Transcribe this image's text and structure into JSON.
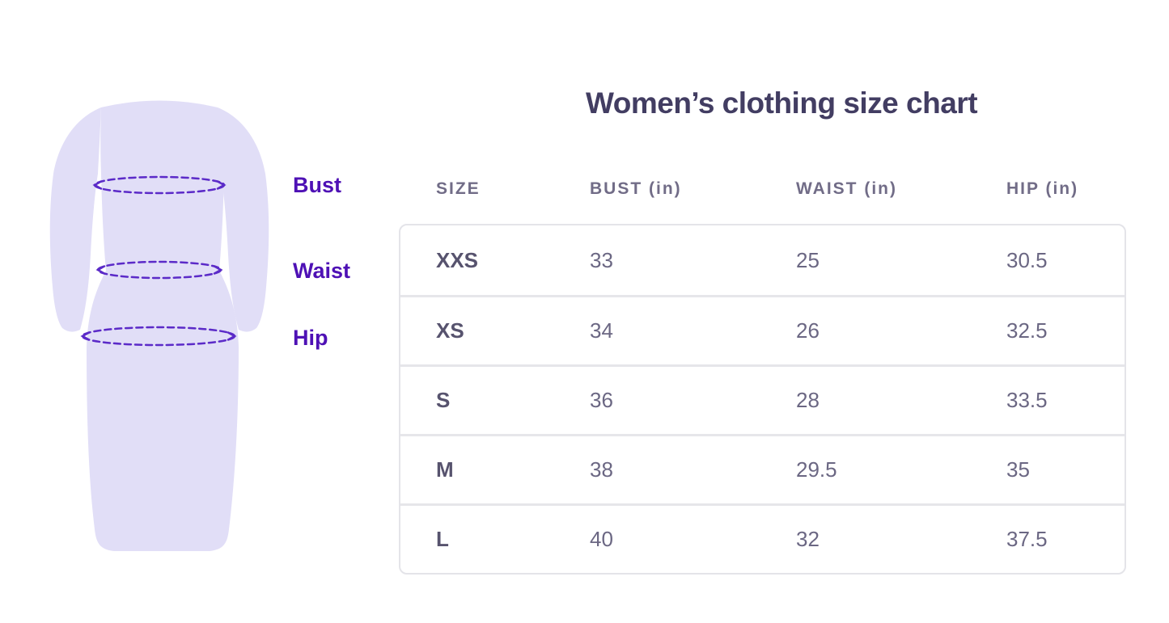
{
  "title": "Women’s clothing size chart",
  "figure": {
    "illustration": "dress-silhouette-with-measurement-lines",
    "measurement_labels": [
      "Bust",
      "Waist",
      "Hip"
    ]
  },
  "table": {
    "headers": [
      "SIZE",
      "BUST (in)",
      "WAIST (in)",
      "HIP (in)"
    ],
    "rows": [
      [
        "XXS",
        "33",
        "25",
        "30.5"
      ],
      [
        "XS",
        "34",
        "26",
        "32.5"
      ],
      [
        "S",
        "36",
        "28",
        "33.5"
      ],
      [
        "M",
        "38",
        "29.5",
        "35"
      ],
      [
        "L",
        "40",
        "32",
        "37.5"
      ]
    ]
  },
  "colors": {
    "title_text": "#423d62",
    "header_text": "#716c87",
    "size_text": "#57536e",
    "value_text": "#6b6783",
    "label_purple": "#4e11b5",
    "measure_line": "#5b2ac8",
    "dress_fill": "#e1def7",
    "table_border": "#e4e4e9",
    "row_separator": "#e6e6ea",
    "background": "#ffffff"
  },
  "chart_data": {
    "type": "table",
    "title": "Women’s clothing size chart",
    "columns": [
      "SIZE",
      "BUST (in)",
      "WAIST (in)",
      "HIP (in)"
    ],
    "units": "inches",
    "rows": [
      {
        "size": "XXS",
        "bust": 33,
        "waist": 25,
        "hip": 30.5
      },
      {
        "size": "XS",
        "bust": 34,
        "waist": 26,
        "hip": 32.5
      },
      {
        "size": "S",
        "bust": 36,
        "waist": 28,
        "hip": 33.5
      },
      {
        "size": "M",
        "bust": 38,
        "waist": 29.5,
        "hip": 35
      },
      {
        "size": "L",
        "bust": 40,
        "waist": 32,
        "hip": 37.5
      }
    ]
  }
}
